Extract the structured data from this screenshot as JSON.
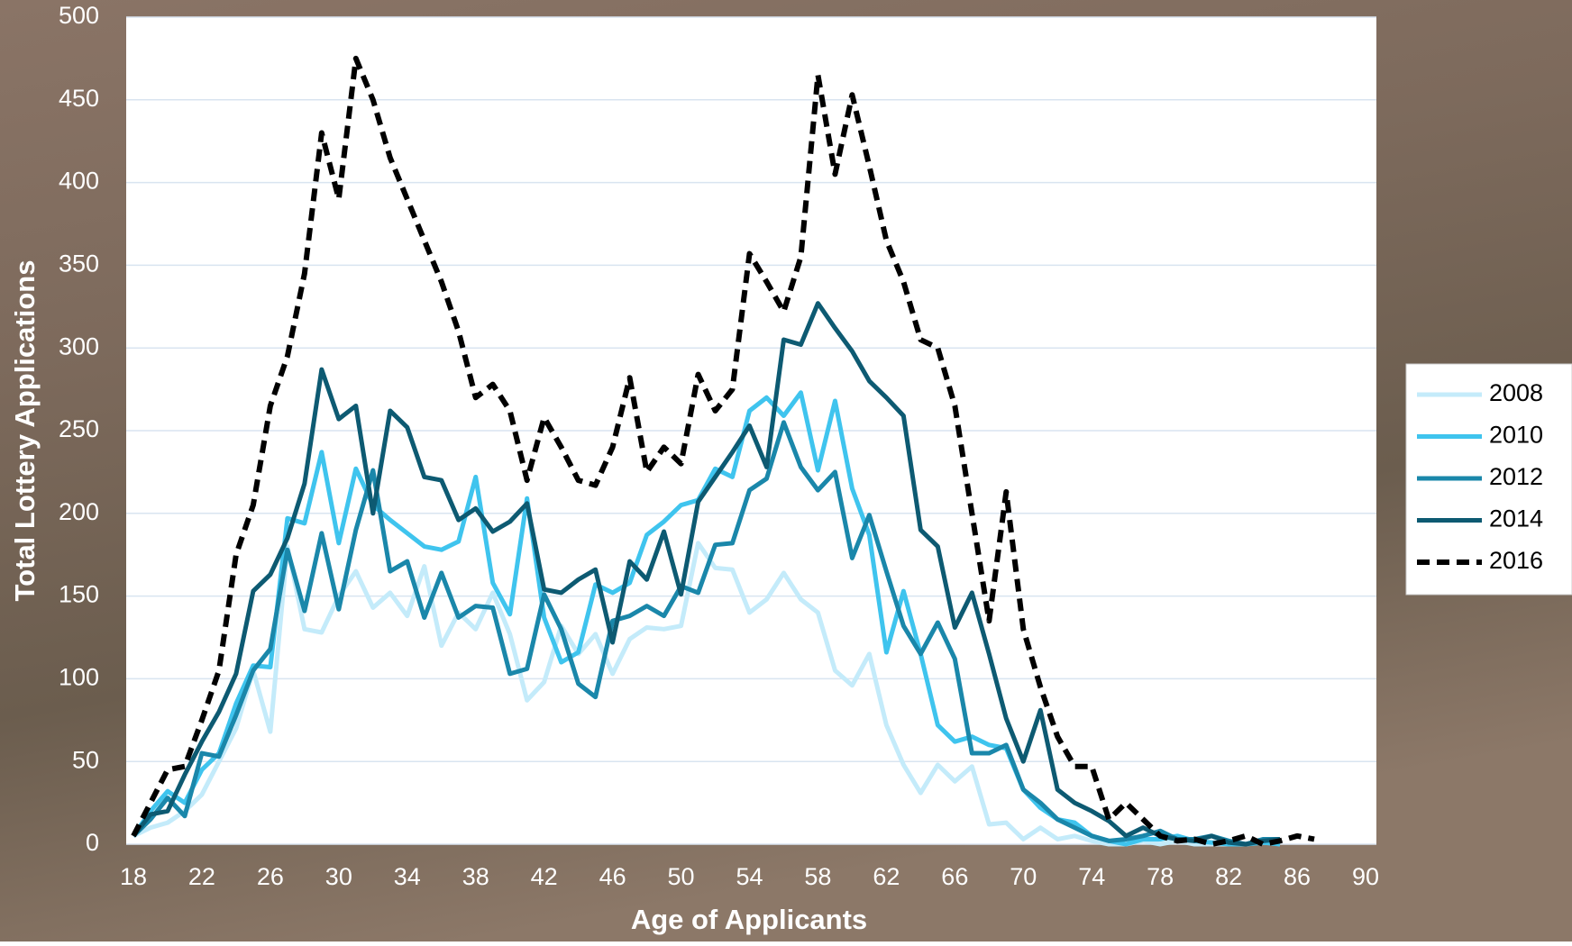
{
  "chart_data": {
    "type": "line",
    "x_label": "Age of Applicants",
    "y_label": "Total Lottery Applications",
    "x": [
      18,
      19,
      20,
      21,
      22,
      23,
      24,
      25,
      26,
      27,
      28,
      29,
      30,
      31,
      32,
      33,
      34,
      35,
      36,
      37,
      38,
      39,
      40,
      41,
      42,
      43,
      44,
      45,
      46,
      47,
      48,
      49,
      50,
      51,
      52,
      53,
      54,
      55,
      56,
      57,
      58,
      59,
      60,
      61,
      62,
      63,
      64,
      65,
      66,
      67,
      68,
      69,
      70,
      71,
      72,
      73,
      74,
      75,
      76,
      77,
      78,
      79,
      80,
      81,
      82,
      83,
      84,
      85,
      86,
      87
    ],
    "xlim": [
      18,
      90
    ],
    "xticks": [
      18,
      22,
      26,
      30,
      34,
      38,
      42,
      46,
      50,
      54,
      58,
      62,
      66,
      70,
      74,
      78,
      82,
      86,
      90
    ],
    "ylim": [
      0,
      500
    ],
    "yticks": [
      0,
      50,
      100,
      150,
      200,
      250,
      300,
      350,
      400,
      450,
      500
    ],
    "grid": true,
    "legend_position": "right",
    "series": [
      {
        "name": "2008",
        "color": "#c4ebfa",
        "dashed": false,
        "values": [
          5,
          10,
          13,
          20,
          30,
          50,
          70,
          105,
          68,
          180,
          130,
          128,
          150,
          165,
          143,
          152,
          138,
          168,
          120,
          140,
          130,
          152,
          127,
          87,
          98,
          132,
          115,
          127,
          103,
          124,
          131,
          130,
          132,
          182,
          167,
          166,
          140,
          148,
          164,
          148,
          140,
          105,
          96,
          115,
          72,
          48,
          31,
          48,
          38,
          47,
          12,
          13,
          3,
          10,
          3,
          5,
          2,
          0,
          0,
          2,
          0,
          2,
          0,
          0,
          0,
          0,
          2,
          0,
          null,
          null
        ]
      },
      {
        "name": "2010",
        "color": "#3fc4ee",
        "dashed": false,
        "values": [
          5,
          20,
          32,
          25,
          45,
          55,
          85,
          108,
          107,
          197,
          194,
          237,
          182,
          227,
          205,
          196,
          188,
          180,
          178,
          183,
          222,
          158,
          139,
          209,
          137,
          110,
          116,
          157,
          152,
          158,
          187,
          195,
          205,
          208,
          227,
          222,
          262,
          270,
          259,
          273,
          226,
          268,
          215,
          187,
          116,
          153,
          115,
          72,
          62,
          65,
          60,
          58,
          33,
          22,
          15,
          13,
          5,
          2,
          0,
          3,
          3,
          5,
          2,
          1,
          0,
          0,
          1,
          0,
          null,
          null
        ]
      },
      {
        "name": "2012",
        "color": "#1a87aa",
        "dashed": false,
        "values": [
          5,
          15,
          28,
          17,
          55,
          53,
          78,
          105,
          118,
          178,
          141,
          188,
          142,
          190,
          226,
          165,
          171,
          137,
          164,
          137,
          144,
          143,
          103,
          106,
          151,
          130,
          97,
          89,
          135,
          138,
          144,
          138,
          156,
          152,
          181,
          182,
          214,
          221,
          255,
          228,
          214,
          225,
          173,
          199,
          165,
          132,
          115,
          134,
          112,
          55,
          55,
          60,
          33,
          25,
          15,
          10,
          5,
          2,
          3,
          5,
          8,
          3,
          3,
          5,
          2,
          0,
          3,
          3,
          null,
          null
        ]
      },
      {
        "name": "2014",
        "color": "#0d5a72",
        "dashed": false,
        "values": [
          5,
          18,
          20,
          42,
          62,
          80,
          103,
          153,
          163,
          185,
          218,
          287,
          257,
          265,
          200,
          262,
          252,
          222,
          220,
          196,
          203,
          189,
          195,
          206,
          154,
          152,
          160,
          166,
          122,
          171,
          160,
          189,
          151,
          207,
          222,
          237,
          253,
          228,
          305,
          302,
          327,
          312,
          298,
          280,
          270,
          259,
          190,
          180,
          131,
          152,
          115,
          76,
          50,
          81,
          33,
          25,
          20,
          14,
          5,
          10,
          5,
          3,
          2,
          5,
          1,
          0,
          2,
          3,
          null,
          null
        ]
      },
      {
        "name": "2016",
        "color": "#000000",
        "dashed": true,
        "values": [
          5,
          25,
          45,
          47,
          75,
          105,
          175,
          205,
          265,
          295,
          345,
          430,
          390,
          475,
          450,
          415,
          390,
          365,
          340,
          310,
          270,
          278,
          262,
          220,
          258,
          240,
          220,
          217,
          240,
          282,
          225,
          240,
          230,
          284,
          262,
          275,
          357,
          340,
          322,
          355,
          465,
          405,
          453,
          410,
          365,
          340,
          305,
          300,
          265,
          200,
          135,
          213,
          130,
          95,
          65,
          47,
          47,
          15,
          25,
          15,
          5,
          2,
          3,
          0,
          2,
          5,
          0,
          2,
          5,
          3
        ]
      }
    ]
  }
}
